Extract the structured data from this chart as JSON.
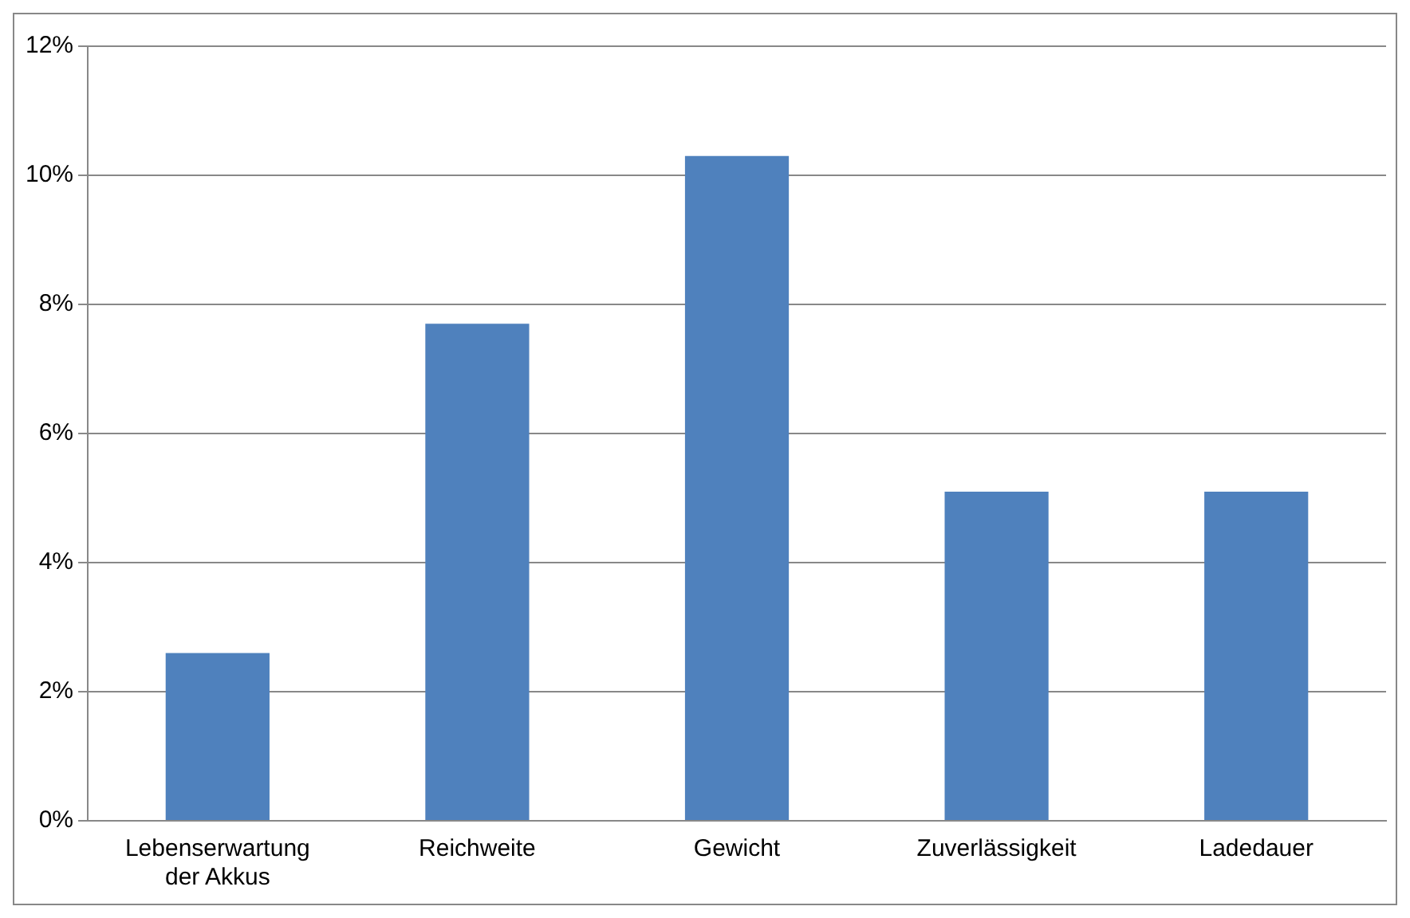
{
  "chart_data": {
    "type": "bar",
    "categories": [
      "Lebenserwartung der Akkus",
      "Reichweite",
      "Gewicht",
      "Zuverlässigkeit",
      "Ladedauer"
    ],
    "values": [
      2.6,
      7.7,
      10.3,
      5.1,
      5.1
    ],
    "color": "#4f81bd",
    "ylim": [
      0,
      12
    ],
    "yticks": [
      {
        "value": 0,
        "label": "0%"
      },
      {
        "value": 2,
        "label": "2%"
      },
      {
        "value": 4,
        "label": "4%"
      },
      {
        "value": 6,
        "label": "6%"
      },
      {
        "value": 8,
        "label": "8%"
      },
      {
        "value": 10,
        "label": "10%"
      },
      {
        "value": 12,
        "label": "12%"
      }
    ],
    "grid": "y"
  }
}
